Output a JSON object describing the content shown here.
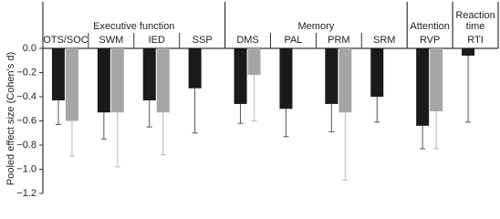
{
  "chart_data": {
    "type": "bar",
    "y_label": "Pooled effect size (Cohen's d)",
    "categories": [
      "OTS/SOC",
      "SWM",
      "IED",
      "SSP",
      "DMS",
      "PAL",
      "PRM",
      "SRM",
      "RVP",
      "RTI"
    ],
    "groups": [
      {
        "label": "Executive function",
        "count": 4
      },
      {
        "label": "Memory",
        "count": 4
      },
      {
        "label": "Attention",
        "count": 1
      },
      {
        "label": "Reaction time",
        "count": 1
      }
    ],
    "series": [
      {
        "color": "#1a1a1a",
        "values": [
          -0.43,
          -0.53,
          -0.43,
          -0.33,
          -0.46,
          -0.5,
          -0.46,
          -0.4,
          -0.64,
          -0.06
        ],
        "errors": [
          0.2,
          0.22,
          0.22,
          0.37,
          0.16,
          0.23,
          0.23,
          0.21,
          0.19,
          0.55
        ],
        "error_color": "#555555"
      },
      {
        "color": "#a6a6a6",
        "values": [
          -0.6,
          -0.53,
          -0.53,
          null,
          -0.22,
          null,
          -0.53,
          null,
          -0.52,
          null
        ],
        "errors": [
          0.29,
          0.45,
          0.35,
          null,
          0.38,
          null,
          0.56,
          null,
          0.31,
          null
        ],
        "error_color": "#b8b8b8"
      }
    ],
    "ylim": [
      -1.2,
      0
    ],
    "yticks": [
      {
        "value": 0,
        "label": "0.0"
      },
      {
        "value": -0.2,
        "label": "−0.2"
      },
      {
        "value": -0.4,
        "label": "−0.4"
      },
      {
        "value": -0.6,
        "label": "−0.6"
      },
      {
        "value": -0.8,
        "label": "−0.8"
      },
      {
        "value": -1.0,
        "label": "−1.0"
      },
      {
        "value": -1.2,
        "label": "−1.2"
      }
    ]
  }
}
